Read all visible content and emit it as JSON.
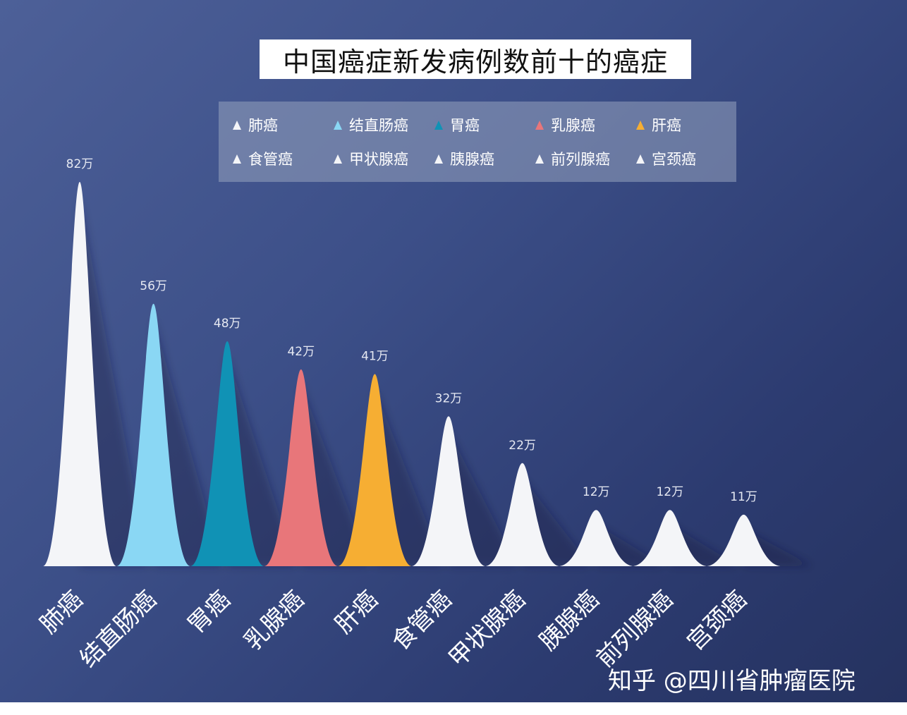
{
  "chart_data": {
    "type": "area",
    "title": "中国癌症新发病例数前十的癌症",
    "categories": [
      "肺癌",
      "结直肠癌",
      "胃癌",
      "乳腺癌",
      "肝癌",
      "食管癌",
      "甲状腺癌",
      "胰腺癌",
      "前列腺癌",
      "宫颈癌"
    ],
    "values": [
      82,
      56,
      48,
      42,
      41,
      32,
      22,
      12,
      12,
      11
    ],
    "data_labels": [
      "82万",
      "56万",
      "48万",
      "42万",
      "41万",
      "32万",
      "22万",
      "12万",
      "12万",
      "11万"
    ],
    "colors": [
      "#f4f5f8",
      "#8ad7f4",
      "#1092b5",
      "#e8767a",
      "#f6ae33",
      "#f4f5f8",
      "#f4f5f8",
      "#f4f5f8",
      "#f4f5f8",
      "#f4f5f8"
    ],
    "legend": [
      "肺癌",
      "结直肠癌",
      "胃癌",
      "乳腺癌",
      "肝癌",
      "食管癌",
      "甲状腺癌",
      "胰腺癌",
      "前列腺癌",
      "宫颈癌"
    ],
    "legend_placement": "top",
    "grid": false,
    "ylim": [
      0,
      86
    ]
  },
  "watermark": "知乎 @四川省肿瘤医院"
}
